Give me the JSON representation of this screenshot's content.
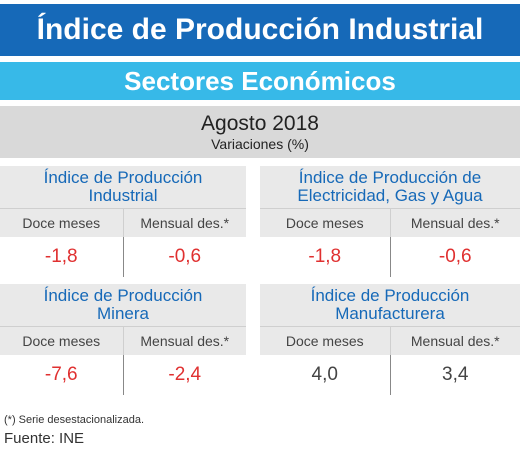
{
  "title": "Índice de Producción Industrial",
  "subtitle": "Sectores Económicos",
  "period": "Agosto 2018",
  "variation_label": "Variaciones (%)",
  "col_labels": {
    "annual": "Doce meses",
    "monthly": "Mensual des.*"
  },
  "cards": [
    {
      "title_line1": "Índice de Producción",
      "title_line2": "Industrial",
      "annual": "-1,8",
      "monthly": "-0,6"
    },
    {
      "title_line1": "Índice de Producción de",
      "title_line2": "Electricidad, Gas y Agua",
      "annual": "-1,8",
      "monthly": "-0,6"
    },
    {
      "title_line1": "Índice de Producción",
      "title_line2": "Minera",
      "annual": "-7,6",
      "monthly": "-2,4"
    },
    {
      "title_line1": "Índice de Producción",
      "title_line2": "Manufacturera",
      "annual": "4,0",
      "monthly": "3,4"
    }
  ],
  "colors": {
    "banner": "#1669b8",
    "subbanner": "#37b9e8",
    "negative": "#e03030",
    "positive": "#444444"
  },
  "footnote": "(*)   Serie desestacionalizada.",
  "source": "Fuente: INE"
}
